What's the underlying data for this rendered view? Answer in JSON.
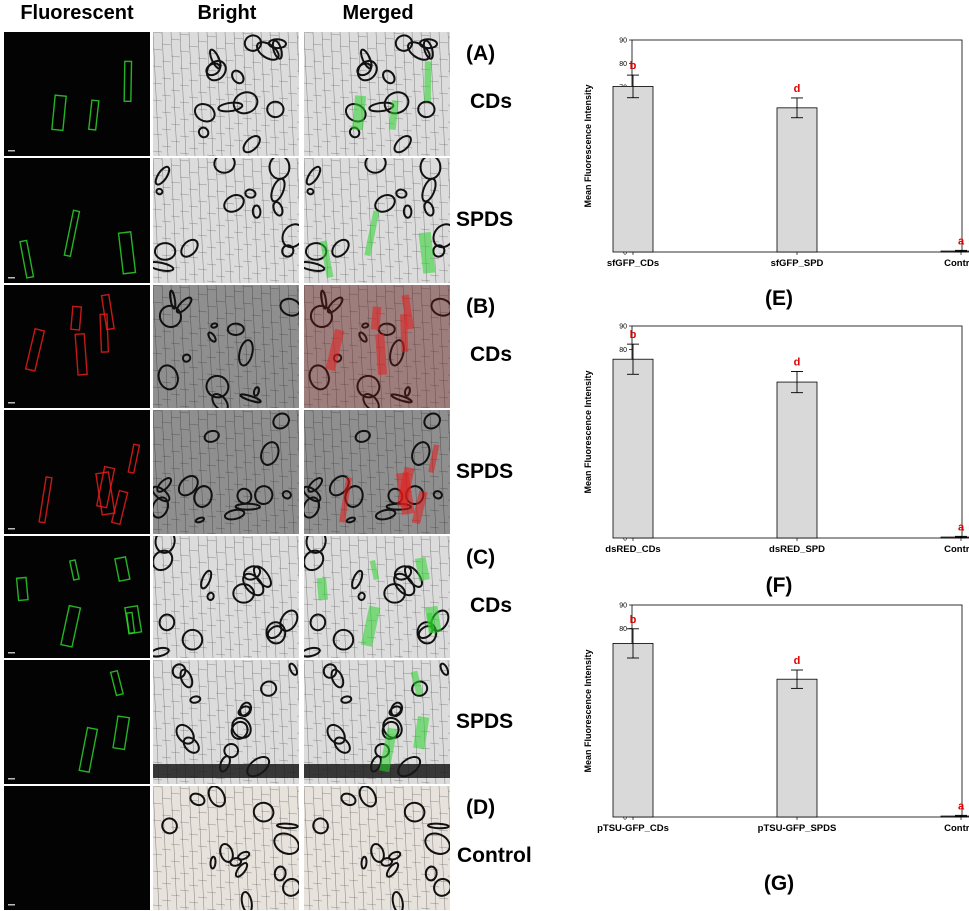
{
  "headers": {
    "fluorescent": "Fluorescent",
    "bright": "Bright",
    "merged": "Merged"
  },
  "rows": [
    {
      "letter": "(A)",
      "label": "CDs",
      "channel": "green"
    },
    {
      "letter": "",
      "label": "SPDS",
      "channel": "green"
    },
    {
      "letter": "(B)",
      "label": "CDs",
      "channel": "red"
    },
    {
      "letter": "",
      "label": "SPDS",
      "channel": "red"
    },
    {
      "letter": "(C)",
      "label": "CDs",
      "channel": "green"
    },
    {
      "letter": "",
      "label": "SPDS",
      "channel": "green"
    },
    {
      "letter": "(D)",
      "label": "Control",
      "channel": "none"
    }
  ],
  "colors": {
    "green": "#2bd42b",
    "red": "#e81c1c",
    "bar": "#d9d9d9",
    "sig": "#e00000"
  },
  "chart_data": [
    {
      "type": "bar",
      "panel": "(E)",
      "categories": [
        "sfGFP_CDs",
        "sfGFP_SPD",
        "Control"
      ],
      "values": [
        70.3,
        61.2,
        0.4
      ],
      "errors": [
        4.8,
        4.2,
        0.3
      ],
      "significance": [
        "b",
        "d",
        "a"
      ],
      "xlabel": "",
      "ylabel": "Mean Fluorescence Intensity",
      "ylim": [
        0,
        90
      ],
      "yticks": [
        0,
        10,
        20,
        30,
        40,
        50,
        60,
        70,
        80,
        90
      ]
    },
    {
      "type": "bar",
      "panel": "(F)",
      "categories": [
        "dsRED_CDs",
        "dsRED_SPD",
        "Control"
      ],
      "values": [
        75.9,
        66.2,
        0.4
      ],
      "errors": [
        6.4,
        4.5,
        0.3
      ],
      "significance": [
        "b",
        "d",
        "a"
      ],
      "xlabel": "",
      "ylabel": "Mean Fluorescence Intensity",
      "ylim": [
        0,
        90
      ],
      "yticks": [
        0,
        10,
        20,
        30,
        40,
        50,
        60,
        70,
        80,
        90
      ]
    },
    {
      "type": "bar",
      "panel": "(G)",
      "categories": [
        "pTSU-GFP_CDs",
        "pTSU-GFP_SPDS",
        "Control"
      ],
      "values": [
        73.7,
        58.5,
        0.4
      ],
      "errors": [
        6.2,
        3.9,
        0.3
      ],
      "significance": [
        "b",
        "d",
        "a"
      ],
      "xlabel": "",
      "ylabel": "Mean Fluorescence Intensity",
      "ylim": [
        0,
        90
      ],
      "yticks": [
        0,
        10,
        20,
        30,
        40,
        50,
        60,
        70,
        80,
        90
      ]
    }
  ]
}
